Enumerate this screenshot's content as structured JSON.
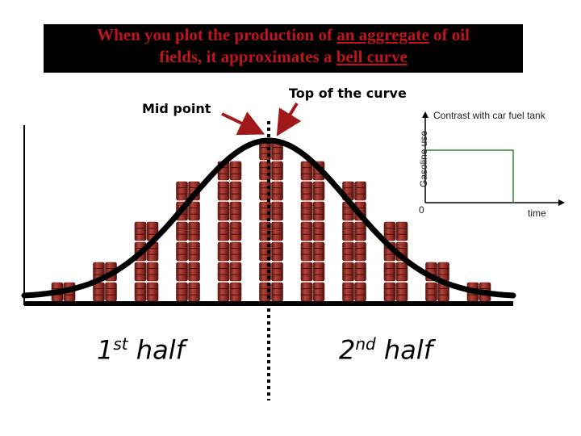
{
  "title": {
    "line1_before": "When you plot the production of ",
    "line1_link": "an aggregate",
    "line1_after": " of oil",
    "line2_before": "fields, it approximates a ",
    "line2_link": "bell curve"
  },
  "labels": {
    "mid_point": "Mid point",
    "top_of_curve": "Top of the curve",
    "first_half_num": "1",
    "first_half_sup": "st",
    "first_half_word": " half",
    "second_half_num": "2",
    "second_half_sup": "nd",
    "second_half_word": " half"
  },
  "inset": {
    "title": "Contrast with car fuel tank",
    "ylabel": "Gasoline use",
    "xlabel": "time",
    "origin": "0"
  },
  "colors": {
    "title_bg": "#000000",
    "title_text": "#c0141e",
    "barrel": "#8e2a24",
    "arrow": "#a01818",
    "inset_line": "#2f8a2f",
    "curve": "#000000"
  },
  "barrel_stacks": [
    1,
    2,
    4,
    6,
    7,
    8,
    7,
    6,
    4,
    2,
    1
  ]
}
